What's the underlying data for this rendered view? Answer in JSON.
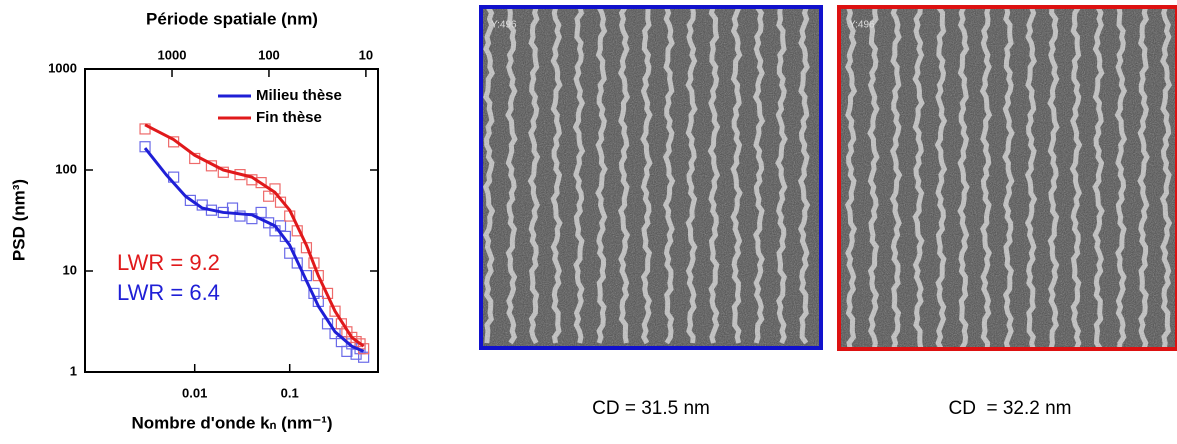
{
  "chart_data": {
    "type": "line",
    "xlabel": "Nombre d'onde kₙ (nm⁻¹)",
    "ylabel": "PSD (nm³)",
    "x2label": "Période spatiale (nm)",
    "xscale": "log",
    "yscale": "log",
    "x2scale": "log",
    "xlim": [
      0.0007,
      0.85
    ],
    "xticks": [
      0.01,
      0.1
    ],
    "ylim": [
      1,
      1000
    ],
    "yticks": [
      1,
      10,
      100,
      1000
    ],
    "x2lim": [
      7900,
      7.5
    ],
    "x2ticks": [
      1000,
      100,
      10
    ],
    "legend": "upper right",
    "series": [
      {
        "name": "Milieu thèse",
        "color": "#1f1fd6",
        "x": [
          0.003,
          0.005,
          0.008,
          0.012,
          0.02,
          0.04,
          0.07,
          0.1,
          0.15,
          0.2,
          0.3,
          0.45,
          0.6
        ],
        "values": [
          165,
          90,
          55,
          42,
          38,
          36,
          28,
          18,
          8,
          4.5,
          2.5,
          1.8,
          1.6
        ]
      },
      {
        "name": "Fin thèse",
        "color": "#e0191b",
        "x": [
          0.003,
          0.006,
          0.01,
          0.02,
          0.04,
          0.07,
          0.1,
          0.15,
          0.2,
          0.3,
          0.45,
          0.6
        ],
        "values": [
          280,
          200,
          140,
          100,
          85,
          60,
          40,
          18,
          9,
          4,
          2.2,
          1.8
        ]
      }
    ],
    "scatter": [
      {
        "color": "#6a6ae8",
        "x": [
          0.003,
          0.006,
          0.009,
          0.012,
          0.015,
          0.02,
          0.025,
          0.03,
          0.04,
          0.05,
          0.06,
          0.07,
          0.08,
          0.09,
          0.1,
          0.12,
          0.15,
          0.18,
          0.2,
          0.25,
          0.3,
          0.35,
          0.4,
          0.45,
          0.5,
          0.55,
          0.6
        ],
        "values": [
          170,
          85,
          50,
          45,
          40,
          38,
          42,
          35,
          33,
          38,
          30,
          25,
          28,
          22,
          15,
          12,
          9,
          6,
          5,
          3,
          2.4,
          2,
          1.6,
          1.9,
          1.5,
          1.7,
          1.4
        ]
      },
      {
        "color": "#ee6a6a",
        "x": [
          0.003,
          0.006,
          0.01,
          0.015,
          0.02,
          0.03,
          0.04,
          0.05,
          0.06,
          0.07,
          0.08,
          0.1,
          0.12,
          0.15,
          0.18,
          0.2,
          0.25,
          0.3,
          0.35,
          0.4,
          0.45,
          0.5,
          0.55,
          0.6
        ],
        "values": [
          255,
          190,
          130,
          110,
          95,
          90,
          80,
          75,
          55,
          65,
          48,
          35,
          25,
          17,
          12,
          9,
          6,
          4,
          3,
          2.5,
          2.2,
          2.0,
          1.9,
          1.7
        ]
      }
    ],
    "annotations": [
      {
        "text": "LWR = 9.2",
        "color": "#e0191b"
      },
      {
        "text": "LWR = 6.4",
        "color": "#1f1fd6"
      }
    ]
  },
  "images": [
    {
      "label": "Y:496",
      "border_color": "#1111cc",
      "caption": "CD = 31.5 nm"
    },
    {
      "label": "Y:496",
      "border_color": "#dd1111",
      "caption": "CD  = 32.2 nm"
    }
  ]
}
